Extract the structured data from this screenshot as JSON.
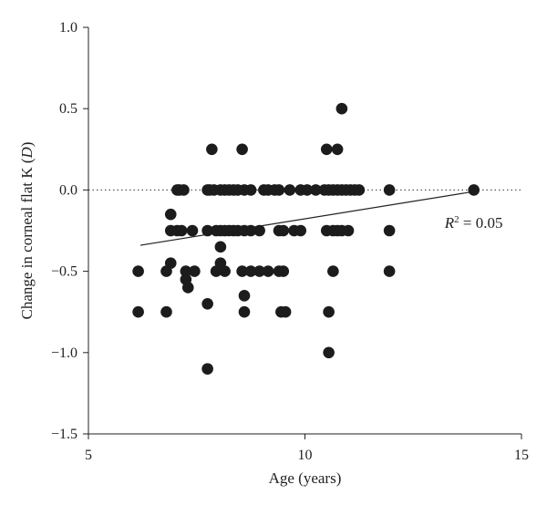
{
  "chart_data": {
    "type": "scatter",
    "title": "",
    "xlabel": "Age (years)",
    "ylabel_main": "Change in corneal flat K (",
    "ylabel_unit": "D",
    "ylabel_close": ")",
    "xlim": [
      5,
      15
    ],
    "ylim": [
      -1.5,
      1.0
    ],
    "xticks": [
      5,
      10,
      15
    ],
    "xtick_labels": [
      "5",
      "10",
      "15"
    ],
    "yticks": [
      1.0,
      0.5,
      0.0,
      -0.5,
      -1.0,
      -1.5
    ],
    "ytick_labels": [
      "1.0",
      "0.5",
      "0.0",
      "−0.5",
      "−1.0",
      "−1.5"
    ],
    "grid": false,
    "reference_line": {
      "y": 0.0,
      "style": "dotted"
    },
    "trendline": {
      "x": [
        6.2,
        13.9
      ],
      "y": [
        -0.34,
        -0.01
      ]
    },
    "annotation": {
      "base": "R",
      "sup": "2",
      "rest": " = 0.05",
      "x": 13.9,
      "y": -0.2
    },
    "points": [
      [
        6.15,
        -0.5
      ],
      [
        6.15,
        -0.75
      ],
      [
        6.8,
        -0.5
      ],
      [
        6.8,
        -0.75
      ],
      [
        6.9,
        -0.15
      ],
      [
        6.9,
        -0.25
      ],
      [
        6.9,
        -0.45
      ],
      [
        7.05,
        0.0
      ],
      [
        7.05,
        -0.25
      ],
      [
        7.1,
        0.0
      ],
      [
        7.2,
        0.0
      ],
      [
        7.15,
        -0.25
      ],
      [
        7.25,
        -0.5
      ],
      [
        7.25,
        -0.55
      ],
      [
        7.3,
        -0.6
      ],
      [
        7.4,
        -0.25
      ],
      [
        7.45,
        -0.5
      ],
      [
        7.75,
        0.0
      ],
      [
        7.75,
        -0.25
      ],
      [
        7.8,
        0.0
      ],
      [
        7.75,
        -0.7
      ],
      [
        7.75,
        -1.1
      ],
      [
        7.85,
        0.25
      ],
      [
        7.9,
        0.0
      ],
      [
        7.95,
        -0.25
      ],
      [
        7.95,
        -0.5
      ],
      [
        8.05,
        0.0
      ],
      [
        8.05,
        -0.25
      ],
      [
        8.05,
        -0.35
      ],
      [
        8.05,
        -0.45
      ],
      [
        8.15,
        0.0
      ],
      [
        8.15,
        -0.25
      ],
      [
        8.15,
        -0.5
      ],
      [
        8.25,
        0.0
      ],
      [
        8.25,
        -0.25
      ],
      [
        8.35,
        0.0
      ],
      [
        8.35,
        -0.25
      ],
      [
        8.45,
        0.0
      ],
      [
        8.45,
        -0.25
      ],
      [
        8.55,
        0.25
      ],
      [
        8.55,
        -0.5
      ],
      [
        8.6,
        0.0
      ],
      [
        8.6,
        -0.25
      ],
      [
        8.6,
        -0.65
      ],
      [
        8.6,
        -0.75
      ],
      [
        8.75,
        0.0
      ],
      [
        8.75,
        -0.25
      ],
      [
        8.75,
        -0.5
      ],
      [
        8.95,
        -0.25
      ],
      [
        8.95,
        -0.5
      ],
      [
        9.05,
        0.0
      ],
      [
        9.15,
        0.0
      ],
      [
        9.15,
        -0.5
      ],
      [
        9.3,
        0.0
      ],
      [
        9.4,
        0.0
      ],
      [
        9.4,
        -0.25
      ],
      [
        9.4,
        -0.5
      ],
      [
        9.45,
        -0.75
      ],
      [
        9.5,
        -0.25
      ],
      [
        9.5,
        -0.5
      ],
      [
        9.55,
        -0.75
      ],
      [
        9.65,
        0.0
      ],
      [
        9.75,
        -0.25
      ],
      [
        9.9,
        0.0
      ],
      [
        9.9,
        -0.25
      ],
      [
        10.05,
        0.0
      ],
      [
        10.25,
        0.0
      ],
      [
        10.45,
        0.0
      ],
      [
        10.5,
        0.25
      ],
      [
        10.5,
        -0.25
      ],
      [
        10.55,
        0.0
      ],
      [
        10.55,
        -0.75
      ],
      [
        10.55,
        -1.0
      ],
      [
        10.65,
        0.0
      ],
      [
        10.65,
        -0.25
      ],
      [
        10.65,
        -0.5
      ],
      [
        10.75,
        0.25
      ],
      [
        10.75,
        0.0
      ],
      [
        10.75,
        -0.25
      ],
      [
        10.85,
        0.5
      ],
      [
        10.85,
        0.0
      ],
      [
        10.85,
        -0.25
      ],
      [
        10.95,
        0.0
      ],
      [
        11.0,
        -0.25
      ],
      [
        11.05,
        0.0
      ],
      [
        11.15,
        0.0
      ],
      [
        11.25,
        0.0
      ],
      [
        11.95,
        0.0
      ],
      [
        11.95,
        -0.25
      ],
      [
        11.95,
        -0.5
      ],
      [
        13.9,
        0.0
      ]
    ]
  }
}
